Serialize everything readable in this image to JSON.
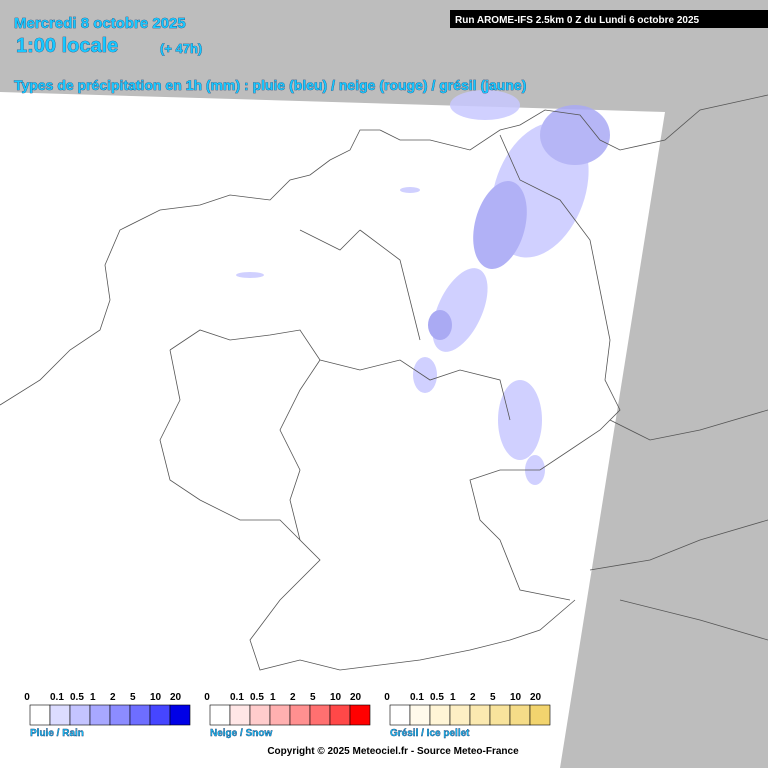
{
  "header": {
    "date": "Mercredi 8 octobre 2025",
    "time": "1:00 locale",
    "lead": "(+ 47h)",
    "run": "Run AROME-IFS 2.5km 0 Z du Lundi 6 octobre 2025",
    "subtitle": "Types de précipitation en 1h (mm) : pluie (bleu) / neige (rouge) / grésil (jaune)"
  },
  "legends": [
    {
      "name": "Pluie / Rain",
      "ticks": [
        0,
        0.1,
        0.5,
        1,
        2,
        5,
        10,
        20
      ],
      "colors": [
        "#ffffff",
        "#dcdcff",
        "#c4c4ff",
        "#a8a8ff",
        "#8c8cff",
        "#6e6eff",
        "#4646ff",
        "#0000e6"
      ]
    },
    {
      "name": "Neige / Snow",
      "ticks": [
        0,
        0.1,
        0.5,
        1,
        2,
        5,
        10,
        20
      ],
      "colors": [
        "#ffffff",
        "#ffe6e6",
        "#ffcccc",
        "#ffb0b0",
        "#ff9090",
        "#ff7070",
        "#ff4848",
        "#ff0000"
      ]
    },
    {
      "name": "Grésil / Ice pellet",
      "ticks": [
        0,
        0.1,
        0.5,
        1,
        2,
        5,
        10,
        20
      ],
      "colors": [
        "#ffffff",
        "#fffaeb",
        "#fff5d6",
        "#fdefc4",
        "#fbe9b0",
        "#f8e39c",
        "#f5dc88",
        "#f2d46e"
      ]
    }
  ],
  "footer": {
    "copyright": "Copyright © 2025 Meteociel.fr - Source Meteo-France"
  }
}
